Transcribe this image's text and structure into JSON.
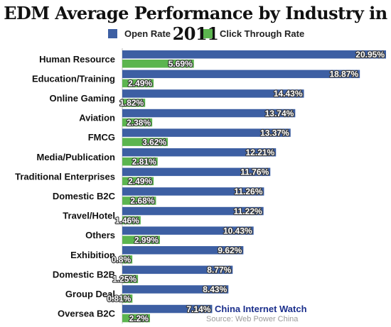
{
  "chart_data": {
    "type": "bar",
    "orientation": "horizontal",
    "title": "EDM Average Performance by Industry in 2011",
    "categories": [
      "Human Resource",
      "Education/Training",
      "Online Gaming",
      "Aviation",
      "FMCG",
      "Media/Publication",
      "Traditional Enterprises",
      "Domestic B2C",
      "Travel/Hotel",
      "Others",
      "Exhibition",
      "Domestic B2B",
      "Group Deal",
      "Oversea B2C"
    ],
    "series": [
      {
        "name": "Open Rate",
        "color": "#3d5fa3",
        "values": [
          20.95,
          18.87,
          14.43,
          13.74,
          13.37,
          12.21,
          11.76,
          11.26,
          11.22,
          10.43,
          9.62,
          8.77,
          8.43,
          7.14
        ],
        "labels": [
          "20.95%",
          "18.87%",
          "14.43%",
          "13.74%",
          "13.37%",
          "12.21%",
          "11.76%",
          "11.26%",
          "11.22%",
          "10.43%",
          "9.62%",
          "8.77%",
          "8.43%",
          "7.14%"
        ]
      },
      {
        "name": "Click Through Rate",
        "color": "#5cb54f",
        "values": [
          5.69,
          2.49,
          1.82,
          2.38,
          3.62,
          2.81,
          2.49,
          2.68,
          1.46,
          2.99,
          0.8,
          1.25,
          0.81,
          2.2
        ],
        "labels": [
          "5.69%",
          "2.49%",
          "1.82%",
          "2.38%",
          "3.62%",
          "2.81%",
          "2.49%",
          "2.68%",
          "1.46%",
          "2.99%",
          "0.8%",
          "1.25%",
          "0.81%",
          "2.2%"
        ]
      }
    ],
    "xlim": [
      0,
      21
    ],
    "grid": false,
    "legend_position": "top"
  },
  "watermark": "China Internet Watch",
  "source": "Source: Web Power China"
}
